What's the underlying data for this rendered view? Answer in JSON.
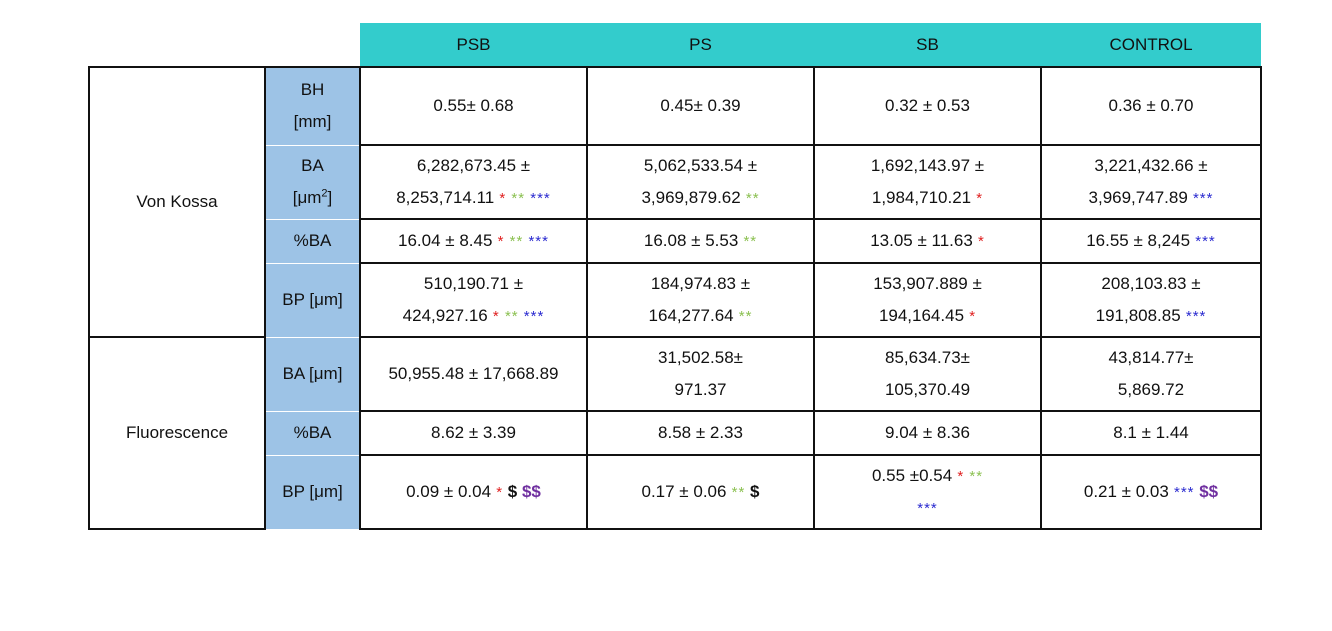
{
  "colors": {
    "header_bg": "#33cccc",
    "metric_bg": "#9dc3e6",
    "star_red": "#e02020",
    "star_green": "#8cc152",
    "star_blue": "#2b2bd0",
    "dollar_black": "#111111",
    "dollar_purple": "#7030a0"
  },
  "table": {
    "headers": [
      "PSB",
      "PS",
      "SB",
      "CONTROL"
    ],
    "groups": {
      "von_kossa": "Von Kossa",
      "fluorescence": "Fluorescence"
    },
    "rows": [
      {
        "metric": [
          "BH",
          "[mm]"
        ],
        "cells": [
          {
            "text": [
              "0.55± 0.68"
            ],
            "marks": []
          },
          {
            "text": [
              "0.45± 0.39"
            ],
            "marks": []
          },
          {
            "text": [
              "0.32 ± 0.53"
            ],
            "marks": []
          },
          {
            "text": [
              "0.36 ± 0.70"
            ],
            "marks": []
          }
        ]
      },
      {
        "metric": [
          "BA",
          "[μm",
          "2",
          "]"
        ],
        "cells": [
          {
            "text": [
              "6,282,673.45 ±",
              "8,253,714.11"
            ],
            "marks": [
              "*",
              "**",
              "***"
            ]
          },
          {
            "text": [
              "5,062,533.54 ±",
              "3,969,879.62"
            ],
            "marks": [
              "**"
            ]
          },
          {
            "text": [
              "1,692,143.97 ±",
              "1,984,710.21"
            ],
            "marks": [
              "*"
            ]
          },
          {
            "text": [
              "3,221,432.66 ±",
              "3,969,747.89"
            ],
            "marks": [
              "***"
            ]
          }
        ]
      },
      {
        "metric": [
          "%BA"
        ],
        "cells": [
          {
            "text": [
              "16.04 ± 8.45"
            ],
            "marks": [
              "*",
              "**",
              "***"
            ]
          },
          {
            "text": [
              "16.08 ± 5.53"
            ],
            "marks": [
              "**"
            ]
          },
          {
            "text": [
              "13.05 ± 11.63"
            ],
            "marks": [
              "*"
            ]
          },
          {
            "text": [
              "16.55 ± 8,245"
            ],
            "marks": [
              "***"
            ]
          }
        ]
      },
      {
        "metric": [
          "BP [μm]"
        ],
        "cells": [
          {
            "text": [
              "510,190.71 ±",
              "424,927.16"
            ],
            "marks": [
              "*",
              "**",
              "***"
            ]
          },
          {
            "text": [
              "184,974.83 ±",
              "164,277.64"
            ],
            "marks": [
              "**"
            ]
          },
          {
            "text": [
              "153,907.889 ±",
              "194,164.45"
            ],
            "marks": [
              "*"
            ]
          },
          {
            "text": [
              "208,103.83 ±",
              "191,808.85"
            ],
            "marks": [
              "***"
            ]
          }
        ]
      },
      {
        "metric": [
          "BA [μm]"
        ],
        "cells": [
          {
            "text": [
              "50,955.48 ± 17,668.89"
            ],
            "marks": []
          },
          {
            "text": [
              "31,502.58±",
              "971.37"
            ],
            "marks": []
          },
          {
            "text": [
              "85,634.73±",
              "105,370.49"
            ],
            "marks": []
          },
          {
            "text": [
              "43,814.77±",
              "5,869.72"
            ],
            "marks": []
          }
        ]
      },
      {
        "metric": [
          "%BA"
        ],
        "cells": [
          {
            "text": [
              "8.62 ± 3.39"
            ],
            "marks": []
          },
          {
            "text": [
              "8.58 ± 2.33"
            ],
            "marks": []
          },
          {
            "text": [
              "9.04 ± 8.36"
            ],
            "marks": []
          },
          {
            "text": [
              "8.1 ± 1.44"
            ],
            "marks": []
          }
        ]
      },
      {
        "metric": [
          "BP [μm]"
        ],
        "cells": [
          {
            "text": [
              "0.09 ± 0.04"
            ],
            "marks": [
              "*",
              "$",
              "$$"
            ]
          },
          {
            "text": [
              "0.17 ± 0.06"
            ],
            "marks": [
              "**",
              "$"
            ]
          },
          {
            "text": [
              "0.55 ±0.54"
            ],
            "marks": [
              "*",
              "**",
              "***"
            ]
          },
          {
            "text": [
              "0.21 ± 0.03"
            ],
            "marks": [
              "***",
              "$$"
            ]
          }
        ]
      }
    ]
  }
}
